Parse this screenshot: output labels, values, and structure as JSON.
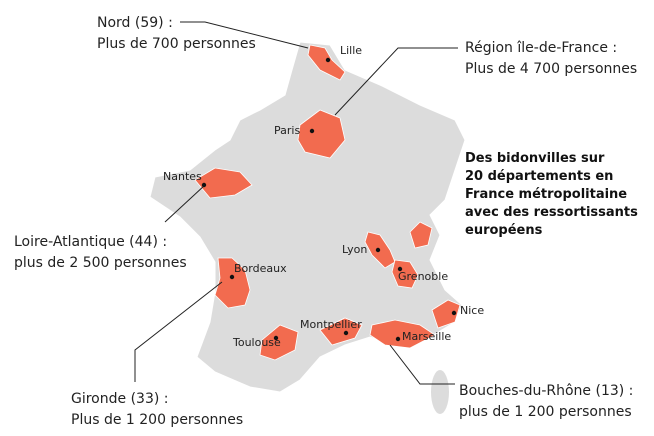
{
  "title_lines": [
    "Des bidonvilles sur",
    "20 départements en",
    "France métropolitaine",
    "avec des ressortissants",
    "européens"
  ],
  "callouts": [
    {
      "name": "Nord (59) :",
      "detail": "Plus de 700 personnes"
    },
    {
      "name": "Région île-de-France :",
      "detail": "Plus de 4 700 personnes"
    },
    {
      "name": "Loire-Atlantique (44) :",
      "detail": "plus de 2 500 personnes"
    },
    {
      "name": "Gironde (33) :",
      "detail": "Plus de 1 200 personnes"
    },
    {
      "name": "Bouches-du-Rhône (13) :",
      "detail": "plus de 1 200 personnes"
    }
  ],
  "cities": [
    "Lille",
    "Paris",
    "Nantes",
    "Bordeaux",
    "Lyon",
    "Grenoble",
    "Nice",
    "Toulouse",
    "Montpellier",
    "Marseille"
  ]
}
